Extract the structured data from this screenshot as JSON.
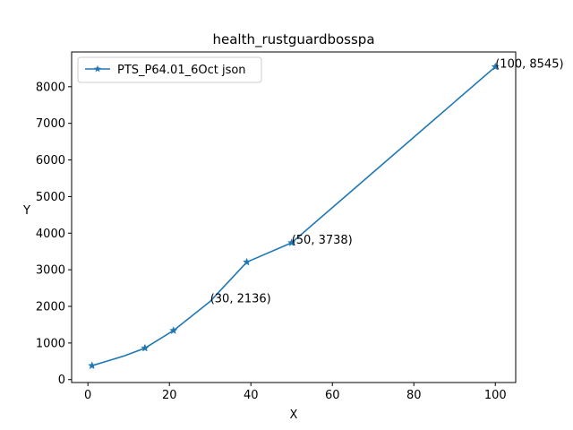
{
  "chart_data": {
    "type": "line",
    "title": "health_rustguardbosspa",
    "xlabel": "X",
    "ylabel": "Y",
    "xlim": [
      -4,
      105
    ],
    "ylim": [
      -80,
      8950
    ],
    "xticks": [
      0,
      20,
      40,
      60,
      80,
      100
    ],
    "yticks": [
      0,
      1000,
      2000,
      3000,
      4000,
      5000,
      6000,
      7000,
      8000
    ],
    "grid": false,
    "legend_position": "upper-left",
    "series": [
      {
        "name": "PTS_P64.01_6Oct json",
        "color": "#1f77b4",
        "marker": "star",
        "points": [
          {
            "x": 1,
            "y": 380
          },
          {
            "x": 9,
            "y": 650
          },
          {
            "x": 14,
            "y": 860
          },
          {
            "x": 21,
            "y": 1340
          },
          {
            "x": 30,
            "y": 2136
          },
          {
            "x": 39,
            "y": 3210
          },
          {
            "x": 50,
            "y": 3738
          },
          {
            "x": 100,
            "y": 8545
          }
        ],
        "marked_x": [
          1,
          14,
          21,
          39,
          50,
          100
        ]
      }
    ],
    "annotations": [
      {
        "x": 30,
        "y": 2136,
        "text": "(30, 2136)"
      },
      {
        "x": 50,
        "y": 3738,
        "text": "(50, 3738)"
      },
      {
        "x": 100,
        "y": 8545,
        "text": "(100, 8545)"
      }
    ]
  }
}
